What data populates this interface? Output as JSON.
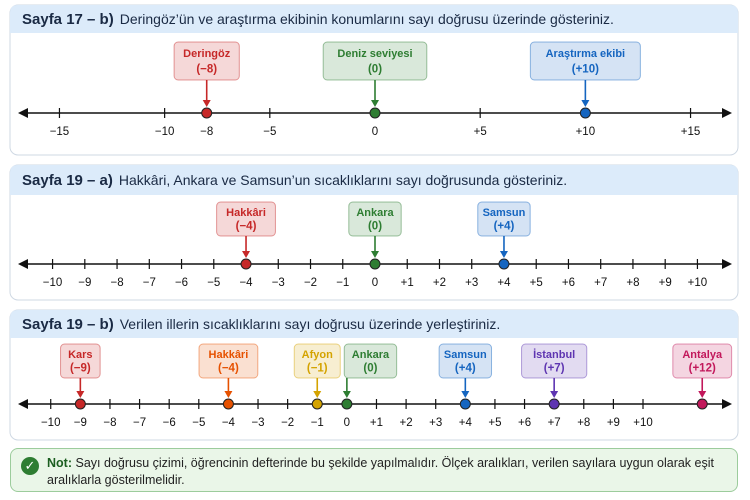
{
  "panels": [
    {
      "label": "Sayfa 17 – b)",
      "text": "Deringöz’ün ve araştırma ekibinin konumlarını sayı doğrusu üzerinde gösteriniz.",
      "axis": {
        "xlim": [
          -16.4,
          16.4
        ],
        "ticks": [
          {
            "value": -15,
            "label": "−15"
          },
          {
            "value": -10,
            "label": "−10"
          },
          {
            "value": -8,
            "label": "−8"
          },
          {
            "value": -5,
            "label": "−5"
          },
          0,
          {
            "value": 5,
            "label": "+5"
          },
          {
            "value": 10,
            "label": "+10"
          },
          {
            "value": 15,
            "label": "+15"
          }
        ]
      },
      "points": [
        {
          "name": "Deringöz",
          "value": -8,
          "label": "(−8)",
          "color": "#c62828"
        },
        {
          "name": "Deniz seviyesi",
          "value": 0,
          "label": "(0)",
          "color": "#2e7d32"
        },
        {
          "name": "Araştırma ekibi",
          "value": 10,
          "label": "(+10)",
          "color": "#1565c0"
        }
      ]
    },
    {
      "label": "Sayfa 19 – a)",
      "text": "Hakkâri, Ankara ve Samsun’un sıcaklıklarını sayı doğrusunda gösteriniz.",
      "axis": {
        "xlim": [
          -10.7,
          10.7
        ],
        "ticks": [
          {
            "value": -10,
            "label": "−10"
          },
          {
            "value": -9,
            "label": "−9"
          },
          {
            "value": -8,
            "label": "−8"
          },
          {
            "value": -7,
            "label": "−7"
          },
          {
            "value": -6,
            "label": "−6"
          },
          {
            "value": -5,
            "label": "−5"
          },
          {
            "value": -4,
            "label": "−4"
          },
          {
            "value": -3,
            "label": "−3"
          },
          {
            "value": -2,
            "label": "−2"
          },
          {
            "value": -1,
            "label": "−1"
          },
          0,
          {
            "value": 1,
            "label": "+1"
          },
          {
            "value": 2,
            "label": "+2"
          },
          {
            "value": 3,
            "label": "+3"
          },
          {
            "value": 4,
            "label": "+4"
          },
          {
            "value": 5,
            "label": "+5"
          },
          {
            "value": 6,
            "label": "+6"
          },
          {
            "value": 7,
            "label": "+7"
          },
          {
            "value": 8,
            "label": "+8"
          },
          {
            "value": 9,
            "label": "+9"
          },
          {
            "value": 10,
            "label": "+10"
          }
        ]
      },
      "points": [
        {
          "name": "Hakkâri",
          "value": -4,
          "label": "(−4)",
          "color": "#c62828"
        },
        {
          "name": "Ankara",
          "value": 0,
          "label": "(0)",
          "color": "#2e7d32"
        },
        {
          "name": "Samsun",
          "value": 4,
          "label": "(+4)",
          "color": "#1565c0"
        }
      ]
    },
    {
      "label": "Sayfa 19 – b)",
      "text": "Verilen illerin sıcaklıklarını sayı doğrusu üzerinde yerleştiriniz.",
      "axis": {
        "xlim": [
          -10.7,
          12.6
        ],
        "ticks": [
          {
            "value": -10,
            "label": "−10"
          },
          {
            "value": -9,
            "label": "−9"
          },
          {
            "value": -8,
            "label": "−8"
          },
          {
            "value": -7,
            "label": "−7"
          },
          {
            "value": -6,
            "label": "−6"
          },
          {
            "value": -5,
            "label": "−5"
          },
          {
            "value": -4,
            "label": "−4"
          },
          {
            "value": -3,
            "label": "−3"
          },
          {
            "value": -2,
            "label": "−2"
          },
          {
            "value": -1,
            "label": "−1"
          },
          0,
          {
            "value": 1,
            "label": "+1"
          },
          {
            "value": 2,
            "label": "+2"
          },
          {
            "value": 3,
            "label": "+3"
          },
          {
            "value": 4,
            "label": "+4"
          },
          {
            "value": 5,
            "label": "+5"
          },
          {
            "value": 6,
            "label": "+6"
          },
          {
            "value": 7,
            "label": "+7"
          },
          {
            "value": 8,
            "label": "+8"
          },
          {
            "value": 9,
            "label": "+9"
          },
          {
            "value": 10,
            "label": "+10"
          }
        ]
      },
      "points": [
        {
          "name": "Kars",
          "value": -9,
          "label": "(−9)",
          "color": "#c62828"
        },
        {
          "name": "Hakkâri",
          "value": -4,
          "label": "(−4)",
          "color": "#e65100"
        },
        {
          "name": "Afyon",
          "value": -1,
          "label": "(−1)",
          "color": "#d4a300"
        },
        {
          "name": "Ankara",
          "value": 0,
          "label": "(0)",
          "color": "#2e7d32"
        },
        {
          "name": "Samsun",
          "value": 4,
          "label": "(+4)",
          "color": "#1565c0"
        },
        {
          "name": "İstanbul",
          "value": 7,
          "label": "(+7)",
          "color": "#5e35b1"
        },
        {
          "name": "Antalya",
          "value": 12,
          "label": "(+12)",
          "color": "#c2185b"
        }
      ]
    }
  ],
  "note": {
    "label": "Not:",
    "text": "Sayı doğrusu çizimi, öğrencinin defterinde bu şekilde yapılmalıdır. Ölçek aralıkları, verilen sayılara uygun olarak eşit aralıklarla gösterilmelidir."
  }
}
